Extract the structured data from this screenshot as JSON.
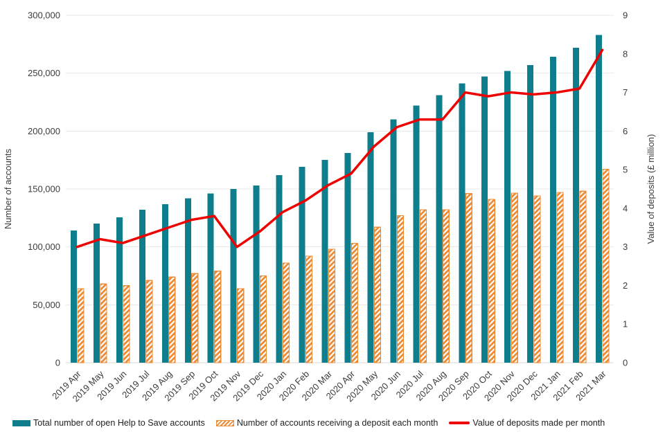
{
  "chart_data": {
    "type": "combo",
    "categories": [
      "2019 Apr",
      "2019 May",
      "2019 Jun",
      "2019 Jul",
      "2019 Aug",
      "2019 Sep",
      "2019 Oct",
      "2019 Nov",
      "2019 Dec",
      "2020 Jan",
      "2020 Feb",
      "2020 Mar",
      "2020 Apr",
      "2020 May",
      "2020 Jun",
      "2020 Jul",
      "2020 Aug",
      "2020 Sep",
      "2020 Oct",
      "2020 Nov",
      "2020 Dec",
      "2021 Jan",
      "2021 Feb",
      "2021 Mar"
    ],
    "series": [
      {
        "name": "Total number of open Help to Save accounts",
        "type": "bar",
        "axis": "left",
        "values": [
          114000,
          120000,
          125500,
          132000,
          137000,
          142000,
          146000,
          150000,
          153000,
          162000,
          169000,
          175000,
          181000,
          199000,
          210000,
          222000,
          231000,
          241000,
          247000,
          252000,
          257000,
          264000,
          272000,
          283000
        ]
      },
      {
        "name": "Number of accounts receiving a deposit each month",
        "type": "bar",
        "axis": "left",
        "hatch": true,
        "values": [
          64000,
          68000,
          66500,
          71000,
          74000,
          77000,
          79000,
          64000,
          75000,
          86000,
          92000,
          98000,
          103000,
          117000,
          127000,
          132000,
          132000,
          146000,
          141000,
          146500,
          144000,
          147000,
          148000,
          167000
        ]
      },
      {
        "name": "Value of deposits made per month",
        "type": "line",
        "axis": "right",
        "values": [
          3.0,
          3.2,
          3.1,
          3.3,
          3.5,
          3.7,
          3.8,
          3.0,
          3.4,
          3.9,
          4.2,
          4.6,
          4.9,
          5.6,
          6.1,
          6.3,
          6.3,
          7.0,
          6.9,
          7.0,
          6.95,
          7.0,
          7.1,
          8.1
        ]
      }
    ],
    "left_axis": {
      "title": "Number of accounts",
      "min": 0,
      "max": 300000,
      "tick_step": 50000,
      "tick_labels": [
        "0",
        "50,000",
        "100,000",
        "150,000",
        "200,000",
        "250,000",
        "300,000"
      ]
    },
    "right_axis": {
      "title": "Value of deposits (£ million)",
      "min": 0,
      "max": 9,
      "tick_step": 1,
      "tick_labels": [
        "0",
        "1",
        "2",
        "3",
        "4",
        "5",
        "6",
        "7",
        "8",
        "9"
      ]
    },
    "colors": {
      "teal": "#0E7D8C",
      "orange": "#ED8B35",
      "red": "#EE0000",
      "grid": "#E8E8E8",
      "axis_line": "#D9D9D9",
      "text": "#3C3C3C"
    },
    "grid": "horizontal",
    "legend_position": "bottom"
  },
  "legend": {
    "items": [
      {
        "label": "Total number of open Help to Save accounts",
        "swatch": "teal-bar"
      },
      {
        "label": "Number of accounts receiving a deposit each month",
        "swatch": "orange-hatched-bar"
      },
      {
        "label": "Value of deposits made per month",
        "swatch": "red-line"
      }
    ]
  }
}
